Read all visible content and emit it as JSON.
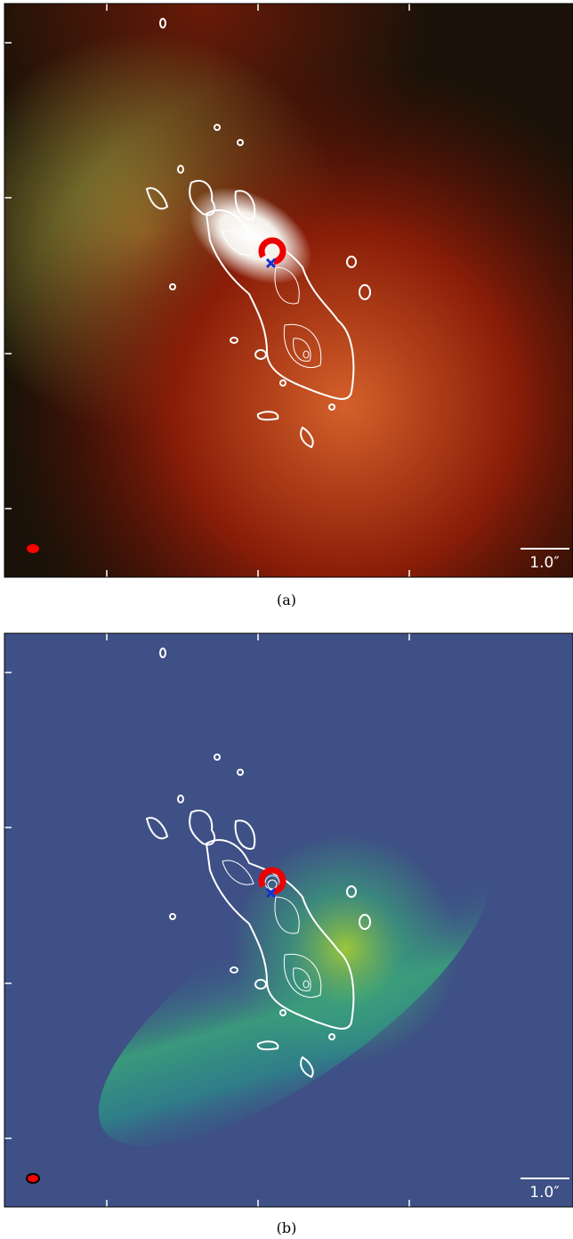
{
  "panels": [
    {
      "scale_bar": "1.0″",
      "caption": "(a)"
    },
    {
      "scale_bar": "1.0″",
      "caption": "(b)"
    }
  ]
}
